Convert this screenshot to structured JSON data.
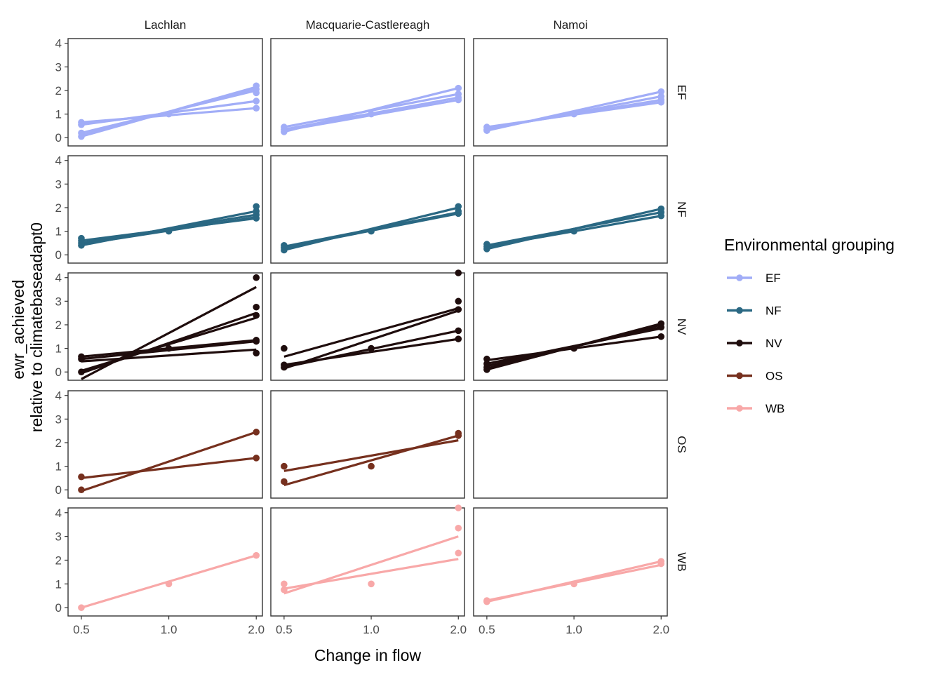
{
  "chart_data": {
    "type": "scatter",
    "facet_cols": [
      "Lachlan",
      "Macquarie-Castlereagh",
      "Namoi"
    ],
    "facet_rows": [
      "EF",
      "NF",
      "NV",
      "OS",
      "WB"
    ],
    "xlabel": "Change in flow",
    "ylabel_lines": [
      "ewr_achieved",
      "relative to climatebaseadapt0"
    ],
    "x_ticks": [
      "0.5",
      "1.0",
      "2.0"
    ],
    "x_tick_values": [
      0.5,
      1.0,
      2.0
    ],
    "x_scale": "log",
    "y_ticks": [
      "0",
      "1",
      "2",
      "3",
      "4"
    ],
    "y_tick_values": [
      0,
      1,
      2,
      3,
      4
    ],
    "ylim": [
      -0.35,
      4.2
    ],
    "grid": false,
    "legend": {
      "title": "Environmental grouping",
      "position": "right",
      "items": [
        {
          "label": "EF",
          "color": "#a1adf7"
        },
        {
          "label": "NF",
          "color": "#2a6883"
        },
        {
          "label": "NV",
          "color": "#1f0d0d"
        },
        {
          "label": "OS",
          "color": "#76301e"
        },
        {
          "label": "WB",
          "color": "#f8a8a8"
        }
      ]
    },
    "panels": [
      {
        "col": "Lachlan",
        "row": "EF",
        "points": [
          [
            0.5,
            0.65
          ],
          [
            0.5,
            0.55
          ],
          [
            0.5,
            0.2
          ],
          [
            0.5,
            0.05
          ],
          [
            1.0,
            1.0
          ],
          [
            2.0,
            2.2
          ],
          [
            2.0,
            2.05
          ],
          [
            2.0,
            1.9
          ],
          [
            2.0,
            1.55
          ],
          [
            2.0,
            1.25
          ]
        ],
        "lines": [
          [
            0.05,
            2.15
          ],
          [
            0.2,
            2.0
          ],
          [
            0.55,
            1.55
          ],
          [
            0.65,
            1.25
          ],
          [
            0.1,
            2.1
          ]
        ]
      },
      {
        "col": "Macquarie-Castlereagh",
        "row": "EF",
        "points": [
          [
            0.5,
            0.45
          ],
          [
            0.5,
            0.35
          ],
          [
            0.5,
            0.25
          ],
          [
            1.0,
            1.0
          ],
          [
            2.0,
            2.1
          ],
          [
            2.0,
            1.85
          ],
          [
            2.0,
            1.7
          ],
          [
            2.0,
            1.6
          ]
        ],
        "lines": [
          [
            0.45,
            1.85
          ],
          [
            0.35,
            1.7
          ],
          [
            0.25,
            2.1
          ],
          [
            0.3,
            1.6
          ]
        ]
      },
      {
        "col": "Namoi",
        "row": "EF",
        "points": [
          [
            0.5,
            0.45
          ],
          [
            0.5,
            0.35
          ],
          [
            0.5,
            0.3
          ],
          [
            1.0,
            1.0
          ],
          [
            2.0,
            1.95
          ],
          [
            2.0,
            1.75
          ],
          [
            2.0,
            1.6
          ],
          [
            2.0,
            1.5
          ]
        ],
        "lines": [
          [
            0.45,
            1.5
          ],
          [
            0.35,
            1.75
          ],
          [
            0.3,
            1.95
          ],
          [
            0.4,
            1.6
          ]
        ]
      },
      {
        "col": "Lachlan",
        "row": "NF",
        "points": [
          [
            0.5,
            0.7
          ],
          [
            0.5,
            0.6
          ],
          [
            0.5,
            0.5
          ],
          [
            0.5,
            0.4
          ],
          [
            1.0,
            1.0
          ],
          [
            2.0,
            2.05
          ],
          [
            2.0,
            1.85
          ],
          [
            2.0,
            1.7
          ],
          [
            2.0,
            1.55
          ]
        ],
        "lines": [
          [
            0.6,
            1.55
          ],
          [
            0.5,
            1.7
          ],
          [
            0.4,
            1.85
          ],
          [
            0.45,
            1.6
          ]
        ]
      },
      {
        "col": "Macquarie-Castlereagh",
        "row": "NF",
        "points": [
          [
            0.5,
            0.4
          ],
          [
            0.5,
            0.3
          ],
          [
            0.5,
            0.2
          ],
          [
            1.0,
            1.0
          ],
          [
            2.0,
            2.05
          ],
          [
            2.0,
            1.85
          ],
          [
            2.0,
            1.75
          ]
        ],
        "lines": [
          [
            0.3,
            1.75
          ],
          [
            0.2,
            2.0
          ],
          [
            0.35,
            1.8
          ]
        ]
      },
      {
        "col": "Namoi",
        "row": "NF",
        "points": [
          [
            0.5,
            0.45
          ],
          [
            0.5,
            0.35
          ],
          [
            0.5,
            0.25
          ],
          [
            1.0,
            1.0
          ],
          [
            2.0,
            1.95
          ],
          [
            2.0,
            1.8
          ],
          [
            2.0,
            1.65
          ]
        ],
        "lines": [
          [
            0.35,
            1.65
          ],
          [
            0.25,
            1.95
          ],
          [
            0.4,
            1.8
          ]
        ]
      },
      {
        "col": "Lachlan",
        "row": "NV",
        "points": [
          [
            0.5,
            0.65
          ],
          [
            0.5,
            0.55
          ],
          [
            0.5,
            0.0
          ],
          [
            1.0,
            1.0
          ],
          [
            2.0,
            4.0
          ],
          [
            2.0,
            2.75
          ],
          [
            2.0,
            2.4
          ],
          [
            2.0,
            1.35
          ],
          [
            2.0,
            1.3
          ],
          [
            2.0,
            0.8
          ]
        ],
        "lines": [
          [
            -0.3,
            3.6
          ],
          [
            -0.05,
            2.5
          ],
          [
            0.05,
            2.3
          ],
          [
            0.55,
            1.3
          ],
          [
            0.65,
            1.35
          ],
          [
            0.45,
            0.95
          ]
        ]
      },
      {
        "col": "Macquarie-Castlereagh",
        "row": "NV",
        "points": [
          [
            0.5,
            1.0
          ],
          [
            0.5,
            0.3
          ],
          [
            0.5,
            0.2
          ],
          [
            1.0,
            1.0
          ],
          [
            2.0,
            4.2
          ],
          [
            2.0,
            3.0
          ],
          [
            2.0,
            2.65
          ],
          [
            2.0,
            1.75
          ],
          [
            2.0,
            1.4
          ]
        ],
        "lines": [
          [
            0.65,
            2.7
          ],
          [
            0.15,
            2.6
          ],
          [
            0.3,
            1.4
          ],
          [
            0.2,
            1.75
          ]
        ]
      },
      {
        "col": "Namoi",
        "row": "NV",
        "points": [
          [
            0.5,
            0.55
          ],
          [
            0.5,
            0.35
          ],
          [
            0.5,
            0.2
          ],
          [
            0.5,
            0.1
          ],
          [
            1.0,
            1.0
          ],
          [
            2.0,
            2.05
          ],
          [
            2.0,
            1.9
          ],
          [
            2.0,
            1.5
          ]
        ],
        "lines": [
          [
            0.5,
            1.5
          ],
          [
            0.15,
            2.0
          ],
          [
            0.25,
            1.9
          ],
          [
            0.35,
            1.85
          ],
          [
            0.1,
            2.05
          ]
        ]
      },
      {
        "col": "Lachlan",
        "row": "OS",
        "points": [
          [
            0.5,
            0.55
          ],
          [
            0.5,
            0.0
          ],
          [
            2.0,
            2.45
          ],
          [
            2.0,
            1.35
          ]
        ],
        "lines": [
          [
            0.5,
            1.35
          ],
          [
            -0.05,
            2.45
          ]
        ]
      },
      {
        "col": "Macquarie-Castlereagh",
        "row": "OS",
        "points": [
          [
            0.5,
            1.0
          ],
          [
            0.5,
            0.35
          ],
          [
            1.0,
            1.0
          ],
          [
            2.0,
            2.4
          ],
          [
            2.0,
            2.3
          ]
        ],
        "lines": [
          [
            0.8,
            2.1
          ],
          [
            0.2,
            2.3
          ]
        ]
      },
      {
        "col": "Namoi",
        "row": "OS",
        "points": [],
        "lines": []
      },
      {
        "col": "Lachlan",
        "row": "WB",
        "points": [
          [
            0.5,
            0.0
          ],
          [
            1.0,
            1.0
          ],
          [
            2.0,
            2.2
          ]
        ],
        "lines": [
          [
            0.0,
            2.2
          ]
        ]
      },
      {
        "col": "Macquarie-Castlereagh",
        "row": "WB",
        "points": [
          [
            0.5,
            1.0
          ],
          [
            0.5,
            0.75
          ],
          [
            1.0,
            1.0
          ],
          [
            2.0,
            4.2
          ],
          [
            2.0,
            3.35
          ],
          [
            2.0,
            2.3
          ]
        ],
        "lines": [
          [
            0.6,
            3.0
          ],
          [
            0.8,
            2.05
          ]
        ]
      },
      {
        "col": "Namoi",
        "row": "WB",
        "points": [
          [
            0.5,
            0.3
          ],
          [
            0.5,
            0.25
          ],
          [
            1.0,
            1.0
          ],
          [
            2.0,
            1.95
          ],
          [
            2.0,
            1.85
          ]
        ],
        "lines": [
          [
            0.25,
            1.95
          ],
          [
            0.3,
            1.8
          ]
        ]
      }
    ]
  }
}
